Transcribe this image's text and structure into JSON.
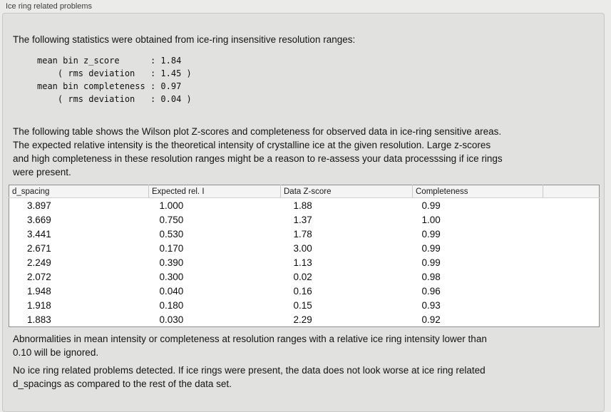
{
  "panel": {
    "title": "Ice ring related problems"
  },
  "stats": {
    "intro": "The following statistics were obtained from ice-ring insensitive resolution ranges:",
    "block": "mean bin z_score      : 1.84\n    ( rms deviation   : 1.45 )\nmean bin completeness : 0.97\n    ( rms deviation   : 0.04 )"
  },
  "table_intro": "The following table shows the Wilson plot Z-scores and completeness for observed data in ice-ring sensitive areas.\nThe expected relative intensity is the theoretical intensity of crystalline ice at the given resolution. Large z-scores\nand high completeness in these resolution ranges might be a reason to re-assess your data processsing if ice rings\nwere present.",
  "table": {
    "headers": [
      "d_spacing",
      "Expected rel. I",
      "Data Z-score",
      "Completeness",
      ""
    ],
    "rows": [
      [
        "3.897",
        "1.000",
        "1.88",
        "0.99",
        ""
      ],
      [
        "3.669",
        "0.750",
        "1.37",
        "1.00",
        ""
      ],
      [
        "3.441",
        "0.530",
        "1.78",
        "0.99",
        ""
      ],
      [
        "2.671",
        "0.170",
        "3.00",
        "0.99",
        ""
      ],
      [
        "2.249",
        "0.390",
        "1.13",
        "0.99",
        ""
      ],
      [
        "2.072",
        "0.300",
        "0.02",
        "0.98",
        ""
      ],
      [
        "1.948",
        "0.040",
        "0.16",
        "0.96",
        ""
      ],
      [
        "1.918",
        "0.180",
        "0.15",
        "0.93",
        ""
      ],
      [
        "1.883",
        "0.030",
        "2.29",
        "0.92",
        ""
      ]
    ]
  },
  "notes": {
    "ignore_note": "Abnormalities in mean intensity or completeness at resolution ranges with a relative ice ring intensity lower than\n0.10 will be ignored.",
    "conclusion": "No ice ring related problems detected. If ice rings were present, the data does not look worse at ice ring related\nd_spacings as compared to the rest of the data set."
  },
  "colors": {
    "outer_bg": "#ebebea",
    "panel_bg": "#e1e1e0",
    "panel_border": "#c6c6c5",
    "table_header_bg": "#f4f4f4",
    "table_body_bg": "#ffffff",
    "table_border": "#8f8f8f"
  }
}
